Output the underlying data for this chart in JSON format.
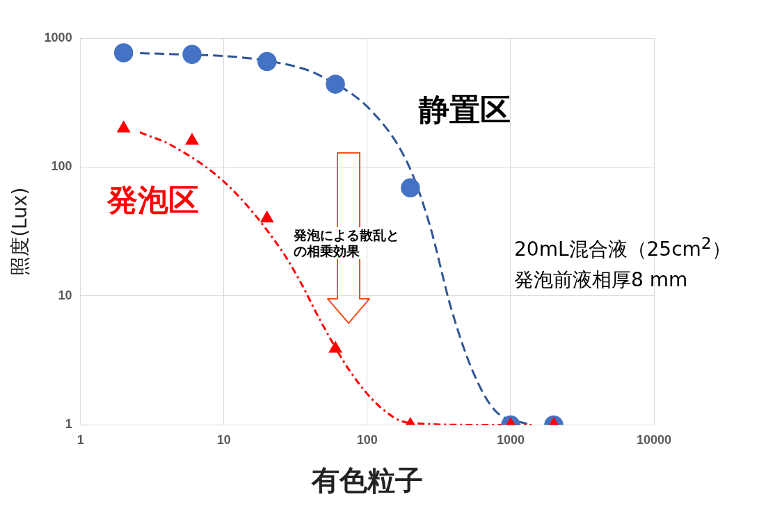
{
  "chart_data": {
    "type": "scatter",
    "xlabel": "有色粒子",
    "ylabel": "照度(Lux)",
    "log": "xy",
    "xlim": [
      1,
      10000
    ],
    "ylim": [
      1,
      1000
    ],
    "xticks": [
      1,
      10,
      100,
      1000,
      10000
    ],
    "yticks": [
      1,
      10,
      100,
      1000
    ],
    "grid": true,
    "legend": false,
    "series": [
      {
        "type": "line",
        "color": "#2f5597",
        "line_style": "dashed",
        "marker": "none",
        "x": [
          2.6,
          4,
          14,
          34,
          45,
          108,
          193,
          272,
          385,
          545,
          775,
          1370
        ],
        "values": [
          765,
          755,
          705,
          590,
          525,
          270,
          105,
          36,
          8,
          2.6,
          1.3,
          1
        ]
      },
      {
        "type": "line",
        "color": "#ff0000",
        "line_style": "dotted",
        "marker": "none",
        "x": [
          2.6,
          3,
          4.2,
          10.7,
          25,
          34,
          48,
          76,
          121,
          193,
          610,
          1400
        ],
        "values": [
          186,
          175,
          150,
          72,
          23,
          13,
          6.2,
          2.6,
          1.4,
          1.04,
          1,
          1
        ]
      },
      {
        "type": "scatter",
        "color": "#4472c4",
        "marker": "circle",
        "x": [
          2,
          6,
          20,
          60,
          200,
          1000,
          2000
        ],
        "values": [
          770,
          750,
          660,
          440,
          69,
          1,
          1
        ]
      },
      {
        "type": "scatter",
        "color": "#ff0000",
        "marker": "triangle",
        "x": [
          2,
          6,
          20,
          60,
          200,
          1000,
          2000
        ],
        "values": [
          200,
          160,
          40,
          3.9,
          1,
          1,
          1
        ]
      }
    ],
    "annotations": [
      "静置区",
      "発泡区",
      "発泡による散乱と",
      "の相乗効果",
      "20mL混合液（25cm$^{2}$）",
      "発泡前液相厚8 mm"
    ]
  }
}
